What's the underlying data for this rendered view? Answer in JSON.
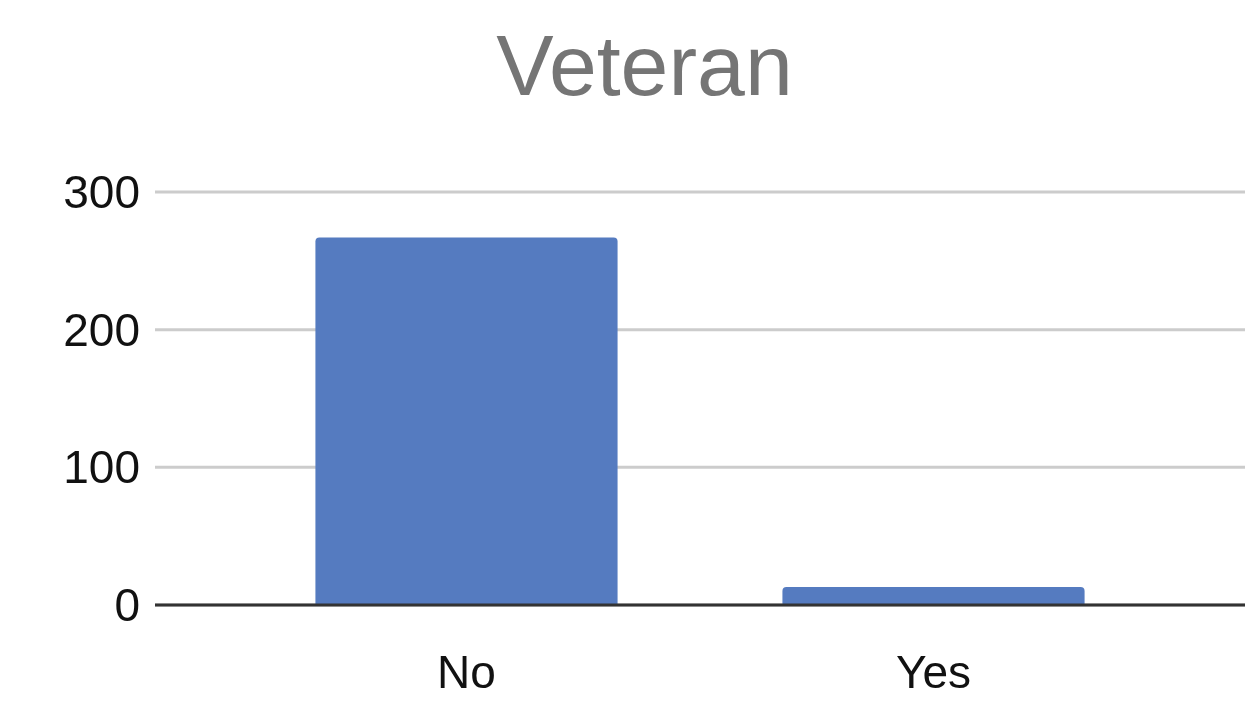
{
  "chart_data": {
    "type": "bar",
    "title": "Veteran",
    "categories": [
      "No",
      "Yes"
    ],
    "values": [
      267,
      13
    ],
    "color": "#557bc0",
    "ylim": [
      0,
      300
    ],
    "yticks": [
      0,
      100,
      200,
      300
    ],
    "grid": "y"
  }
}
